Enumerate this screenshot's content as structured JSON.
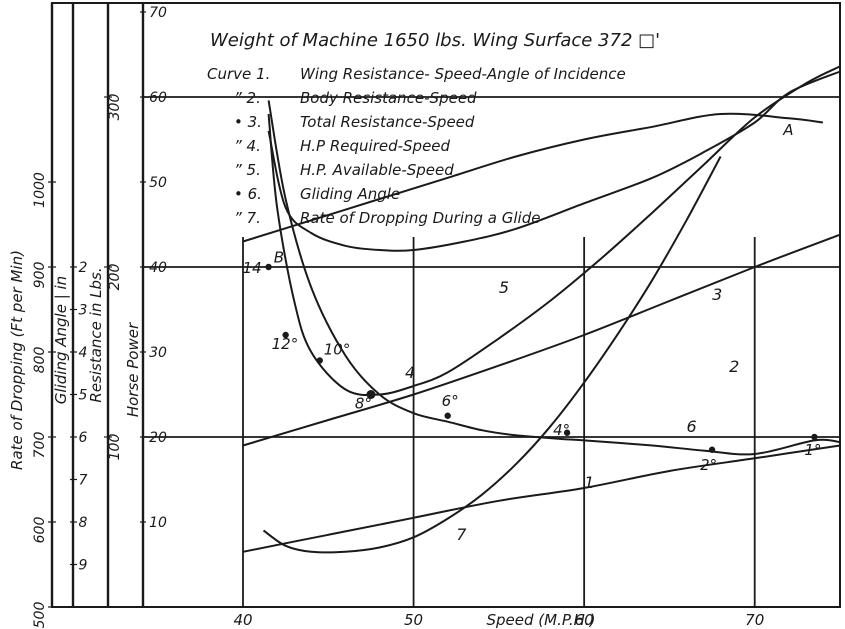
{
  "chart_data": {
    "type": "line",
    "title": "Weight of Machine 1650 lbs. Wing Surface 372 □'",
    "legend_entries": [
      {
        "prefix": "Curve 1.",
        "label": "Wing Resistance- Speed-Angle of Incidence"
      },
      {
        "prefix": "” 2.",
        "label": "Body Resistance-Speed"
      },
      {
        "prefix": "• 3.",
        "label": "Total Resistance-Speed"
      },
      {
        "prefix": "” 4.",
        "label": "H.P Required-Speed"
      },
      {
        "prefix": "” 5.",
        "label": "H.P. Available-Speed"
      },
      {
        "prefix": "• 6.",
        "label": "Gliding Angle"
      },
      {
        "prefix": "” 7.",
        "label": "Rate of Dropping During a Glide"
      }
    ],
    "xlabel": "Speed (M.P.H.)",
    "xlim": [
      40,
      75
    ],
    "x_ticks": [
      "40",
      "50",
      "60",
      "70"
    ],
    "grid": true,
    "scales": [
      {
        "label": "Rate of Dropping (Ft per Min)",
        "range": [
          500,
          1100
        ],
        "ticks": [
          "500",
          "600",
          "700",
          "800",
          "900",
          "1000"
        ]
      },
      {
        "label": "Gliding Angle | in",
        "range": [
          10,
          1
        ],
        "ticks": [
          "9",
          "8",
          "7",
          "6",
          "5",
          "4",
          "3",
          "2"
        ]
      },
      {
        "label": "Resistance in Lbs.",
        "range": [
          0,
          300
        ],
        "ticks": [
          "100",
          "200",
          "300"
        ]
      },
      {
        "label": "Horse Power",
        "range": [
          0,
          80
        ],
        "ticks": [
          "10",
          "20",
          "30",
          "40",
          "50",
          "60",
          "70"
        ]
      }
    ],
    "series": [
      {
        "name": "1",
        "scale": "Resistance in Lbs.",
        "x": [
          41.5,
          42.5,
          44.0,
          46.0,
          48.0,
          50.0,
          52.0,
          54.0,
          56.0,
          58.5,
          60.0,
          64.0,
          67.0,
          70.0,
          73.5,
          75.0
        ],
        "y": [
          298,
          240,
          188,
          148,
          125,
          114,
          109,
          104,
          101,
          99,
          98,
          95,
          92,
          90,
          98,
          97
        ]
      },
      {
        "name": "2",
        "scale": "Resistance in Lbs.",
        "x": [
          40,
          45,
          50,
          55,
          60,
          65,
          70,
          75
        ],
        "y": [
          95,
          110,
          125,
          142,
          160,
          180,
          200,
          219
        ]
      },
      {
        "name": "3",
        "scale": "Resistance in Lbs.",
        "x": [
          41.5,
          42.0,
          43.0,
          44.0,
          46.0,
          48.0,
          50.0,
          52.0,
          55.0,
          58.0,
          61.0,
          64.0,
          67.0,
          70.0,
          73.0,
          75.0
        ],
        "y": [
          290,
          235,
          180,
          150,
          128,
          125,
          130,
          138,
          158,
          180,
          205,
          232,
          260,
          288,
          308,
          318
        ]
      },
      {
        "name": "4",
        "scale": "Horse Power",
        "x": [
          41.5,
          42.5,
          44.0,
          46.0,
          48.0,
          50.0,
          53.0,
          56.0,
          60.0,
          64.0,
          67.0,
          70.0,
          72.0,
          75.0
        ],
        "y": [
          56,
          47,
          44,
          42.5,
          42,
          42,
          43,
          44.5,
          47.5,
          50.5,
          53.5,
          57,
          60.5,
          63
        ]
      },
      {
        "name": "5",
        "scale": "Horse Power",
        "x": [
          40,
          44,
          48,
          52,
          56,
          60,
          64,
          68,
          72,
          74
        ],
        "y": [
          43,
          45.5,
          48,
          50.5,
          53,
          55,
          56.5,
          58,
          57.5,
          57
        ]
      },
      {
        "name": "6",
        "scale": "Gliding Angle | in",
        "x": [
          40,
          45,
          50,
          55,
          60,
          65,
          70,
          75
        ],
        "y": [
          8.7,
          8.3,
          7.9,
          7.5,
          7.2,
          6.8,
          6.5,
          6.2
        ]
      },
      {
        "name": "7",
        "scale": "Rate of Dropping (Ft per Min)",
        "x": [
          41.2,
          42.5,
          44.0,
          46.0,
          48.0,
          50.0,
          52.0,
          54.0,
          56.0,
          58.0,
          60.0,
          62.0,
          64.0,
          66.0,
          68.0
        ],
        "y": [
          590,
          572,
          565,
          565,
          570,
          582,
          604,
          632,
          668,
          712,
          764,
          822,
          885,
          955,
          1030
        ]
      }
    ],
    "points": [
      {
        "x": 41.5,
        "hp": 40,
        "label": "14"
      },
      {
        "x": 42.5,
        "hp": 32,
        "label": "12°"
      },
      {
        "x": 44.5,
        "hp": 29,
        "label": "10°"
      },
      {
        "x": 47.5,
        "hp": 25,
        "label": "8°"
      },
      {
        "x": 52.0,
        "hp": 22.5,
        "label": "6°"
      },
      {
        "x": 59.0,
        "hp": 20.5,
        "label": "4°"
      },
      {
        "x": 67.5,
        "hp": 18.5,
        "label": "2°"
      },
      {
        "x": 73.5,
        "hp": 20,
        "label": "1°"
      }
    ],
    "markers": [
      {
        "label": "A",
        "x": 70.5,
        "hp": 56
      },
      {
        "label": "B",
        "x": 41.8,
        "hp": 41
      }
    ]
  }
}
